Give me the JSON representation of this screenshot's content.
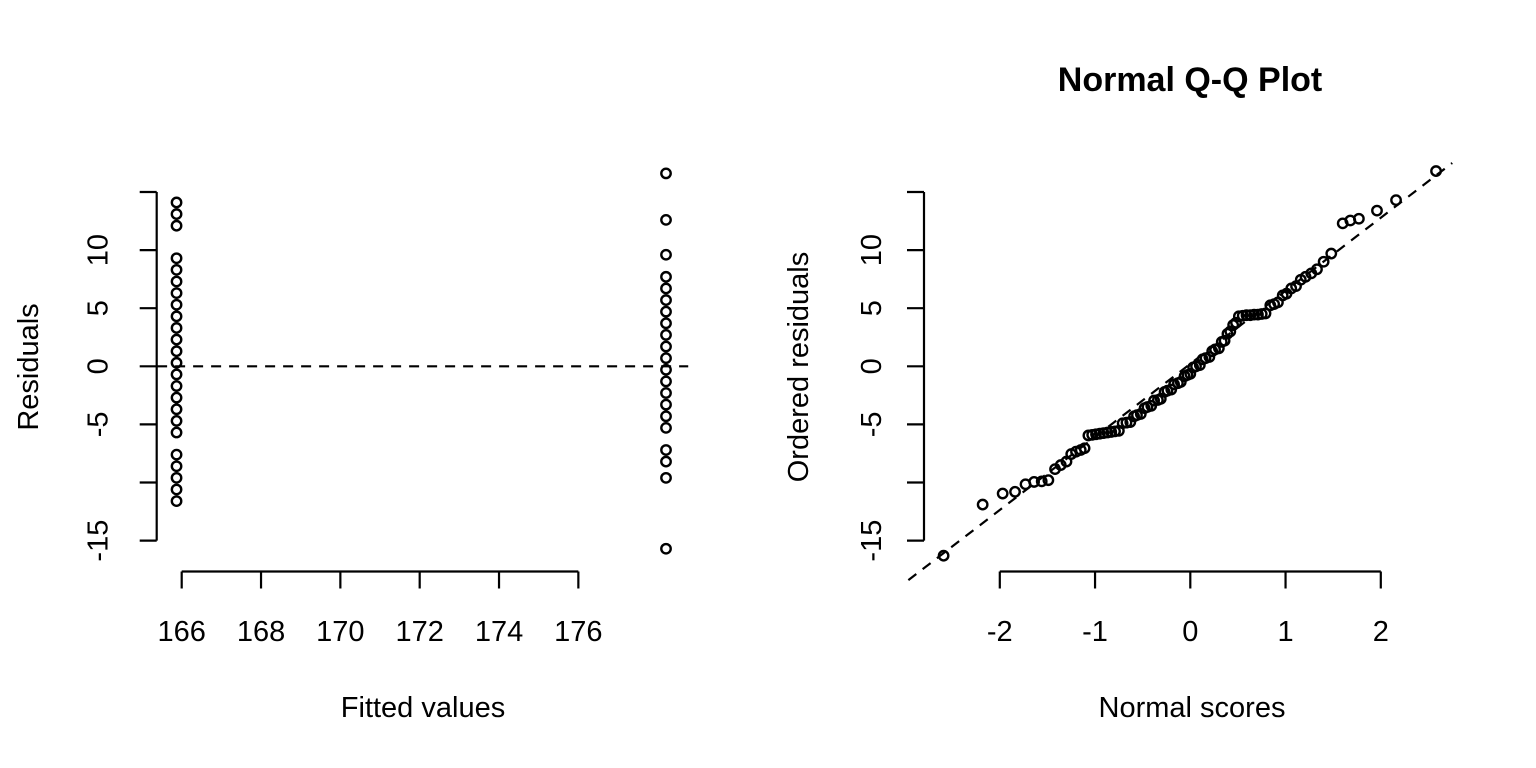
{
  "figure": {
    "background": "#ffffff",
    "foreground": "#000000"
  },
  "chart_data": [
    {
      "type": "scatter",
      "name": "residuals-vs-fitted",
      "title": "",
      "xlabel": "Fitted values",
      "ylabel": "Residuals",
      "xtick_values": [
        166,
        168,
        170,
        172,
        174,
        176
      ],
      "xtick_labels": [
        "166",
        "168",
        "170",
        "172",
        "174",
        "176"
      ],
      "ytick_values": [
        -15,
        -10,
        -5,
        0,
        5,
        10,
        15
      ],
      "ytick_labels": [
        "-15",
        "",
        "-5",
        "0",
        "5",
        "10",
        ""
      ],
      "xlim": [
        165.4,
        178.8
      ],
      "ylim": [
        -18,
        18.2
      ],
      "grid": false,
      "legend": null,
      "zero_line": {
        "y": 0,
        "style": "dashed",
        "x_span": [
          165.38,
          178.77
        ]
      },
      "series": [
        {
          "name": "fitted-group-1",
          "fitted": 165.87,
          "residuals": [
            14.1,
            13.1,
            12.1,
            9.3,
            8.3,
            7.3,
            6.3,
            5.3,
            4.3,
            3.3,
            2.3,
            1.3,
            0.3,
            -0.7,
            -1.7,
            -2.7,
            -3.7,
            -4.7,
            -5.7,
            -7.6,
            -8.6,
            -9.6,
            -10.6,
            -11.6
          ]
        },
        {
          "name": "fitted-group-2",
          "fitted": 178.21,
          "residuals": [
            16.6,
            12.6,
            9.6,
            7.7,
            6.7,
            5.7,
            4.7,
            3.7,
            2.7,
            1.7,
            0.7,
            -0.3,
            -1.3,
            -2.3,
            -3.3,
            -4.3,
            -5.3,
            -7.2,
            -8.2,
            -9.6,
            -15.7
          ]
        }
      ]
    },
    {
      "type": "scatter",
      "name": "normal-qq",
      "title": "Normal Q-Q Plot",
      "xlabel": "Normal scores",
      "ylabel": "Ordered residuals",
      "xtick_values": [
        -2,
        -1,
        0,
        1,
        2
      ],
      "xtick_labels": [
        "-2",
        "-1",
        "0",
        "1",
        "2"
      ],
      "ytick_values": [
        -15,
        -10,
        -5,
        0,
        5,
        10,
        15
      ],
      "ytick_labels": [
        "-15",
        "",
        "-5",
        "0",
        "5",
        "10",
        ""
      ],
      "xlim": [
        -2.97,
        2.75
      ],
      "ylim": [
        -18,
        18.2
      ],
      "grid": false,
      "legend": null,
      "qq_line": {
        "style": "dashed",
        "points": [
          [
            -2.96,
            -18.4
          ],
          [
            2.75,
            17.5
          ]
        ]
      },
      "points": [
        [
          -2.59,
          -16.3
        ],
        [
          -2.18,
          -11.9
        ],
        [
          -1.97,
          -10.95
        ],
        [
          -1.84,
          -10.8
        ],
        [
          -1.73,
          -10.15
        ],
        [
          -1.64,
          -9.95
        ],
        [
          -1.56,
          -9.9
        ],
        [
          -1.49,
          -9.8
        ],
        [
          -1.42,
          -8.85
        ],
        [
          -1.36,
          -8.5
        ],
        [
          -1.3,
          -8.2
        ],
        [
          -1.25,
          -7.55
        ],
        [
          -1.2,
          -7.35
        ],
        [
          -1.15,
          -7.2
        ],
        [
          -1.11,
          -7.05
        ],
        [
          -1.07,
          -5.95
        ],
        [
          -1.03,
          -5.9
        ],
        [
          -0.99,
          -5.85
        ],
        [
          -0.95,
          -5.8
        ],
        [
          -0.91,
          -5.75
        ],
        [
          -0.87,
          -5.7
        ],
        [
          -0.83,
          -5.65
        ],
        [
          -0.79,
          -5.6
        ],
        [
          -0.75,
          -5.55
        ],
        [
          -0.71,
          -4.9
        ],
        [
          -0.67,
          -4.85
        ],
        [
          -0.63,
          -4.8
        ],
        [
          -0.59,
          -4.3
        ],
        [
          -0.56,
          -4.2
        ],
        [
          -0.52,
          -4.1
        ],
        [
          -0.48,
          -3.6
        ],
        [
          -0.45,
          -3.5
        ],
        [
          -0.41,
          -3.4
        ],
        [
          -0.38,
          -2.95
        ],
        [
          -0.34,
          -2.9
        ],
        [
          -0.31,
          -2.8
        ],
        [
          -0.27,
          -2.2
        ],
        [
          -0.24,
          -2.1
        ],
        [
          -0.2,
          -2.0
        ],
        [
          -0.17,
          -1.55
        ],
        [
          -0.13,
          -1.45
        ],
        [
          -0.1,
          -1.35
        ],
        [
          -0.06,
          -0.85
        ],
        [
          -0.03,
          -0.75
        ],
        [
          0.0,
          -0.65
        ],
        [
          0.03,
          -0.1
        ],
        [
          0.06,
          0.0
        ],
        [
          0.1,
          0.1
        ],
        [
          0.13,
          0.6
        ],
        [
          0.16,
          0.7
        ],
        [
          0.2,
          0.8
        ],
        [
          0.23,
          1.3
        ],
        [
          0.26,
          1.45
        ],
        [
          0.3,
          1.55
        ],
        [
          0.33,
          2.1
        ],
        [
          0.36,
          2.2
        ],
        [
          0.39,
          2.8
        ],
        [
          0.42,
          3.0
        ],
        [
          0.45,
          3.55
        ],
        [
          0.48,
          3.75
        ],
        [
          0.51,
          4.3
        ],
        [
          0.55,
          4.35
        ],
        [
          0.59,
          4.4
        ],
        [
          0.63,
          4.4
        ],
        [
          0.67,
          4.45
        ],
        [
          0.71,
          4.45
        ],
        [
          0.75,
          4.5
        ],
        [
          0.79,
          4.55
        ],
        [
          0.84,
          5.25
        ],
        [
          0.88,
          5.35
        ],
        [
          0.92,
          5.5
        ],
        [
          0.97,
          6.1
        ],
        [
          1.01,
          6.25
        ],
        [
          1.06,
          6.7
        ],
        [
          1.11,
          6.9
        ],
        [
          1.16,
          7.45
        ],
        [
          1.21,
          7.7
        ],
        [
          1.27,
          8.0
        ],
        [
          1.33,
          8.35
        ],
        [
          1.4,
          9.0
        ],
        [
          1.48,
          9.7
        ],
        [
          1.6,
          12.3
        ],
        [
          1.68,
          12.55
        ],
        [
          1.77,
          12.7
        ],
        [
          1.96,
          13.4
        ],
        [
          2.16,
          14.3
        ],
        [
          2.58,
          16.8
        ]
      ]
    }
  ]
}
